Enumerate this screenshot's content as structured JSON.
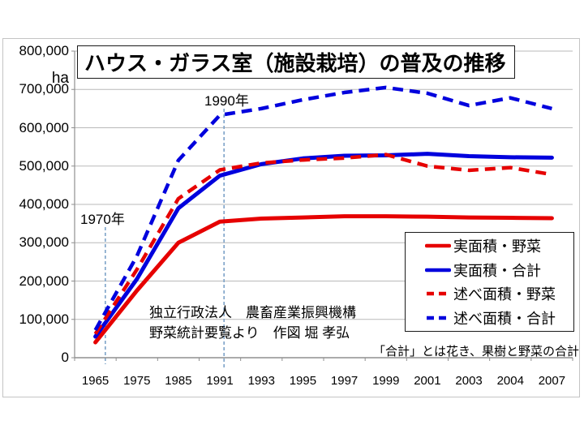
{
  "chart_data": {
    "type": "line",
    "title": "ハウス・ガラス室（施設栽培）の普及の推移",
    "y_unit": "ha",
    "ylim": [
      0,
      800000
    ],
    "y_tick_interval": 100000,
    "y_tick_labels": [
      "800,000",
      "700,000",
      "600,000",
      "500,000",
      "400,000",
      "300,000",
      "200,000",
      "100,000",
      "0"
    ],
    "categories": [
      "1965",
      "1975",
      "1985",
      "1991",
      "1993",
      "1995",
      "1997",
      "1999",
      "2001",
      "2003",
      "2004",
      "2007"
    ],
    "grid": true,
    "legend_position": "bottom-right",
    "series": [
      {
        "name": "実面積・野菜",
        "color": "#e60000",
        "dash": "solid",
        "values": [
          40000,
          175000,
          300000,
          355000,
          363000,
          366000,
          369000,
          369000,
          368000,
          366000,
          365000,
          364000
        ]
      },
      {
        "name": "実面積・合計",
        "color": "#0000dd",
        "dash": "solid",
        "values": [
          55000,
          205000,
          390000,
          475000,
          505000,
          520000,
          527000,
          528000,
          532000,
          526000,
          523000,
          522000
        ]
      },
      {
        "name": "述べ面積・野菜",
        "color": "#e60000",
        "dash": "dashed",
        "values": [
          62000,
          230000,
          415000,
          490000,
          508000,
          516000,
          521000,
          530000,
          500000,
          489000,
          496000,
          478000
        ]
      },
      {
        "name": "述べ面積・合計",
        "color": "#0000dd",
        "dash": "dashed",
        "values": [
          72000,
          265000,
          515000,
          633000,
          650000,
          673000,
          692000,
          705000,
          690000,
          658000,
          678000,
          650000
        ]
      }
    ],
    "annotations": [
      {
        "label": "1970年",
        "year": 1970,
        "x_index": 0.24
      },
      {
        "label": "1990年",
        "year": 1990,
        "x_index": 3.1
      }
    ],
    "source_line1": "独立行政法人　農畜産業振興機構",
    "source_line2": "野菜統計要覧より　作図 堀 孝弘",
    "footnote": "「合計」とは花き、果樹と野菜の合計",
    "colors": {
      "red_series": "#e60000",
      "blue_series": "#0000dd",
      "reference_line": "#7da2c8",
      "gridline": "#b9b9b9",
      "axis": "#8f8f8f"
    }
  }
}
